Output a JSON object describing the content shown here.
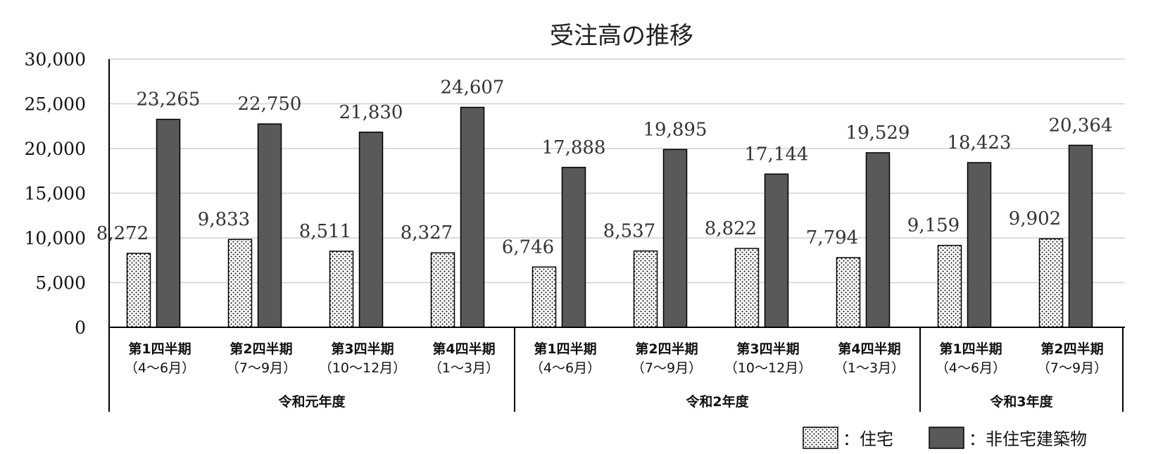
{
  "chart_data": {
    "type": "bar",
    "title": "受注高の推移",
    "ylim": [
      0,
      30000
    ],
    "yticks": [
      "30,000",
      "25,000",
      "20,000",
      "15,000",
      "10,000",
      "5,000",
      "0"
    ],
    "ytick_values": [
      30000,
      25000,
      20000,
      15000,
      10000,
      5000,
      0
    ],
    "grid": true,
    "legend_position": "bottom-right",
    "categories": [
      {
        "line1": "第1四半期",
        "line2": "（4〜6月）"
      },
      {
        "line1": "第2四半期",
        "line2": "（7〜9月）"
      },
      {
        "line1": "第3四半期",
        "line2": "（10〜12月）"
      },
      {
        "line1": "第4四半期",
        "line2": "（1〜3月）"
      },
      {
        "line1": "第1四半期",
        "line2": "（4〜6月）"
      },
      {
        "line1": "第2四半期",
        "line2": "（7〜9月）"
      },
      {
        "line1": "第3四半期",
        "line2": "（10〜12月）"
      },
      {
        "line1": "第4四半期",
        "line2": "（1〜3月）"
      },
      {
        "line1": "第1四半期",
        "line2": "（4〜6月）"
      },
      {
        "line1": "第2四半期",
        "line2": "（7〜9月）"
      }
    ],
    "groups": [
      {
        "label": "令和元年度",
        "count": 4
      },
      {
        "label": "令和2年度",
        "count": 4
      },
      {
        "label": "令和3年度",
        "count": 2
      }
    ],
    "series": [
      {
        "name": "：住宅",
        "values": [
          8272,
          9833,
          8511,
          8327,
          6746,
          8537,
          8822,
          7794,
          9159,
          9902
        ],
        "value_labels": [
          "8,272",
          "9,833",
          "8,511",
          "8,327",
          "6,746",
          "8,537",
          "8,822",
          "7,794",
          "9,159",
          "9,902"
        ],
        "pattern": "dots",
        "color": "#ffffff"
      },
      {
        "name": "：非住宅建築物",
        "values": [
          23265,
          22750,
          21830,
          24607,
          17888,
          19895,
          17144,
          19529,
          18423,
          20364
        ],
        "value_labels": [
          "23,265",
          "22,750",
          "21,830",
          "24,607",
          "17,888",
          "19,895",
          "17,144",
          "19,529",
          "18,423",
          "20,364"
        ],
        "pattern": "solid",
        "color": "#595959"
      }
    ]
  }
}
